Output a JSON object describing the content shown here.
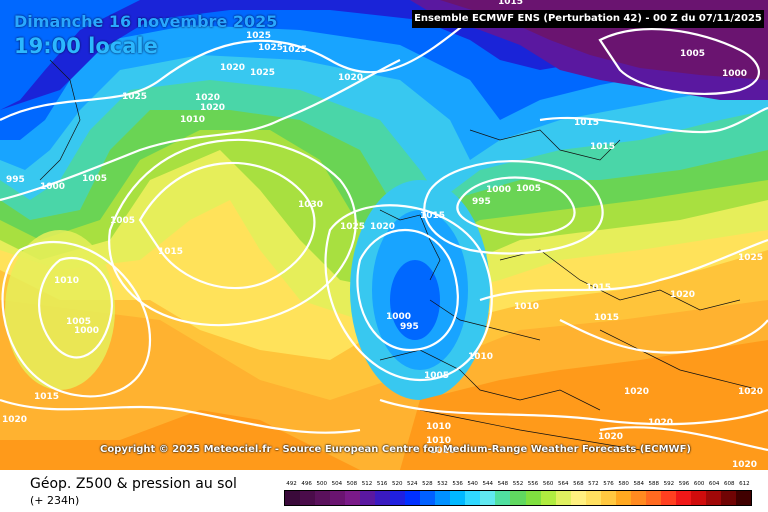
{
  "header": {
    "date": "Dimanche 16 novembre 2025",
    "time": "19:00 locale",
    "model_run": "Ensemble ECMWF ENS  (Perturbation 42)  -  00 Z du 07/11/2025"
  },
  "copyright": "Copyright © 2025 Meteociel.fr - Source European Centre for Medium-Range Weather Forecasts (ECMWF)",
  "footer": {
    "title": "Géop. Z500 & pression au sol",
    "lead_time": "(+ 234h)"
  },
  "scale": {
    "labels": [
      "492",
      "496",
      "500",
      "504",
      "508",
      "512",
      "516",
      "520",
      "524",
      "528",
      "532",
      "536",
      "540",
      "544",
      "548",
      "552",
      "556",
      "560",
      "564",
      "568",
      "572",
      "576",
      "580",
      "584",
      "588",
      "592",
      "596",
      "600",
      "604",
      "608",
      "612"
    ],
    "colors": [
      "#3a0a3a",
      "#4a0c4a",
      "#5a115c",
      "#6a1470",
      "#7a1a88",
      "#5a18a0",
      "#3a1ac0",
      "#2020e0",
      "#0030ff",
      "#0060ff",
      "#0090ff",
      "#00b8ff",
      "#30d8ff",
      "#60e8f0",
      "#50e0a0",
      "#60d860",
      "#80e040",
      "#b0ec40",
      "#e0f060",
      "#fff080",
      "#ffe060",
      "#ffc840",
      "#ffa820",
      "#ff8a20",
      "#ff6a20",
      "#ff4020",
      "#f01818",
      "#d00c0c",
      "#a00808",
      "#700404",
      "#400000"
    ]
  },
  "pressure_labels": [
    "1025",
    "1025",
    "1025",
    "1020",
    "1025",
    "1020",
    "1020",
    "1010",
    "1025",
    "1020",
    "1005",
    "995",
    "1000",
    "1005",
    "1030",
    "1025",
    "1020",
    "1015",
    "1015",
    "1010",
    "1005",
    "1000",
    "1000",
    "995",
    "1015",
    "1005",
    "1000",
    "995",
    "1015",
    "1015",
    "1005",
    "1000",
    "1015",
    "1025",
    "1015",
    "1020",
    "1010",
    "1015",
    "1010",
    "1005",
    "1020",
    "1020",
    "1010",
    "1010",
    "1020",
    "1020",
    "1020",
    "1010",
    "1020"
  ]
}
